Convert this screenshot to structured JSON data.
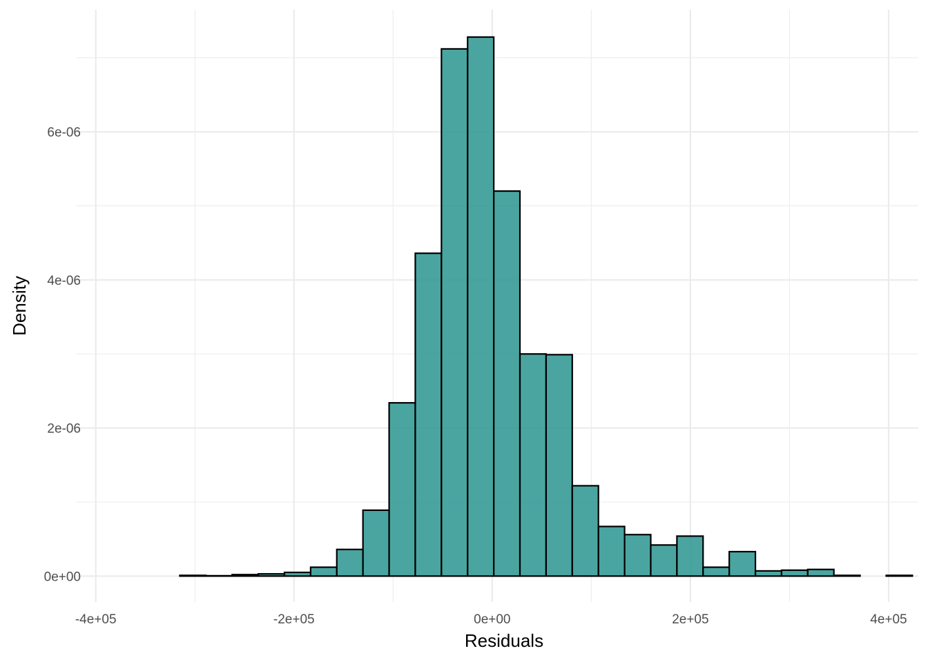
{
  "chart_data": {
    "type": "bar",
    "subtype": "histogram",
    "title": "",
    "xlabel": "Residuals",
    "ylabel": "Density",
    "xlim": [
      -420000,
      430000
    ],
    "ylim": [
      -3.5e-07,
      7.65e-06
    ],
    "grid": true,
    "legend": "none",
    "x_ticks": [
      {
        "value": -400000,
        "label": "-4e+05"
      },
      {
        "value": -200000,
        "label": "-2e+05"
      },
      {
        "value": 0,
        "label": "0e+00"
      },
      {
        "value": 200000,
        "label": "2e+05"
      },
      {
        "value": 400000,
        "label": "4e+05"
      }
    ],
    "y_ticks": [
      {
        "value": 0,
        "label": "0e+00"
      },
      {
        "value": 2e-06,
        "label": "2e-06"
      },
      {
        "value": 4e-06,
        "label": "4e-06"
      },
      {
        "value": 6e-06,
        "label": "6e-06"
      }
    ],
    "x_minor": [
      -300000,
      -100000,
      100000,
      300000
    ],
    "y_minor": [
      1e-06,
      3e-06,
      5e-06,
      7e-06
    ],
    "bins": {
      "start": -368000,
      "width": 26400,
      "values": [
        0.0,
        0.0,
        1e-08,
        5e-09,
        2e-08,
        3e-08,
        5e-08,
        1.2e-07,
        3.6e-07,
        8.9e-07,
        2.34e-06,
        4.36e-06,
        7.12e-06,
        7.28e-06,
        5.2e-06,
        3e-06,
        2.99e-06,
        1.22e-06,
        6.7e-07,
        5.6e-07,
        4.2e-07,
        5.4e-07,
        1.2e-07,
        3.3e-07,
        7e-08,
        8e-08,
        9e-08,
        1e-08,
        0.0,
        1e-08
      ]
    },
    "colors": {
      "fill": "#2a9590",
      "outline": "#000000",
      "grid": "#ebebeb"
    }
  }
}
